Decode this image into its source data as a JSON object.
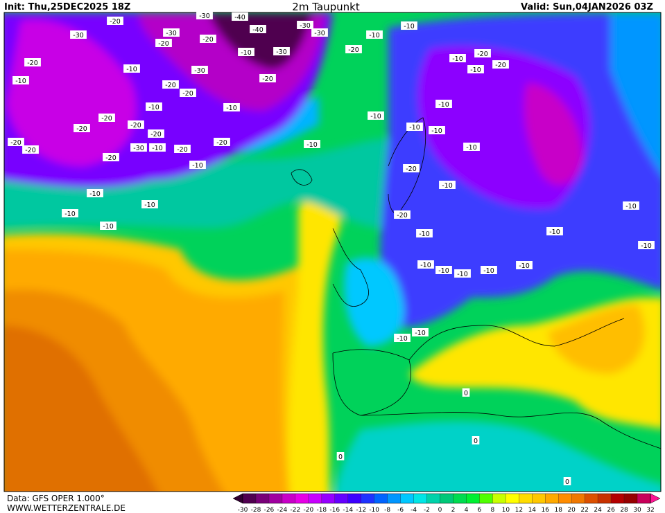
{
  "header": {
    "init": "Init: Thu,25DEC2025 18Z",
    "title": "2m Taupunkt",
    "valid": "Valid: Sun,04JAN2026 03Z"
  },
  "footer": {
    "data": "Data: GFS OPER 1.000°",
    "website": "WWW.WETTERZENTRALE.DE"
  },
  "colorbar": {
    "ticks": [
      -30,
      -28,
      -26,
      -24,
      -22,
      -20,
      -18,
      -16,
      -14,
      -12,
      -10,
      -8,
      -6,
      -4,
      -2,
      0,
      2,
      4,
      6,
      8,
      10,
      12,
      14,
      16,
      18,
      20,
      22,
      24,
      26,
      28,
      30,
      32
    ],
    "colors": [
      "#300030",
      "#500050",
      "#780078",
      "#a000a0",
      "#c800c8",
      "#e600e6",
      "#c800ff",
      "#9600ff",
      "#6400ff",
      "#3c00ff",
      "#1e32ff",
      "#0064ff",
      "#0096ff",
      "#00c8ff",
      "#00e6e6",
      "#00d2aa",
      "#00c878",
      "#00dc50",
      "#00f032",
      "#50ff00",
      "#c8ff00",
      "#ffff00",
      "#ffdc00",
      "#ffc800",
      "#ffaa00",
      "#ff8c00",
      "#f07800",
      "#dc5000",
      "#c83200",
      "#b40000",
      "#960000",
      "#c8005a",
      "#ff1493"
    ]
  },
  "contour_labels": [
    "-30",
    "-20",
    "-40",
    "-30",
    "-30",
    "-20",
    "-30",
    "-20",
    "-30",
    "-40",
    "-30",
    "-20",
    "-10",
    "-10",
    "-10",
    "-20",
    "-10",
    "-20",
    "-20",
    "-30",
    "-20",
    "-20",
    "-10",
    "-20",
    "-10",
    "-20",
    "-20",
    "-20",
    "-20",
    "-10",
    "-20",
    "-30",
    "-20",
    "-10",
    "-10",
    "-10",
    "-10",
    "-10",
    "-10",
    "-20",
    "-10",
    "-10",
    "-10",
    "-20",
    "-10",
    "-10",
    "-10",
    "-10",
    "-20",
    "-20",
    "-10",
    "-10",
    "-10",
    "-10",
    "-10",
    "-10",
    "-10",
    "-20",
    "-10",
    "-10",
    "-10",
    "-10",
    "-10",
    "-10",
    "0",
    "0",
    "0",
    "0"
  ]
}
